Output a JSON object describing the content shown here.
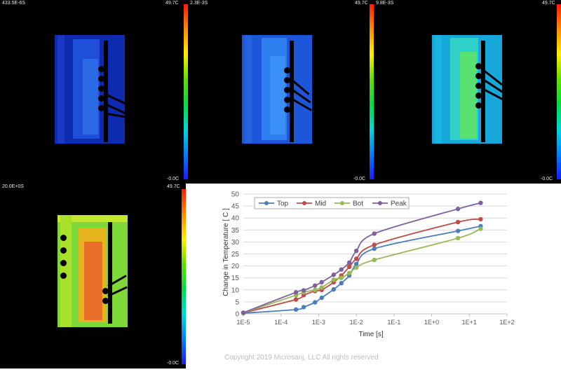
{
  "panels": [
    {
      "time": "433.5E-6S",
      "max": "49.7C",
      "min": "-0.0C"
    },
    {
      "time": "2.3E-3S",
      "max": "49.7C",
      "min": "-0.0C"
    },
    {
      "time": "9.8E-3S",
      "max": "49.7C",
      "min": "-0.0C"
    },
    {
      "time": "20.0E+0S",
      "max": "49.7C",
      "min": "-0.0C"
    }
  ],
  "copyright": "Copyright 2019 Microsanj, LLC All rights reserved",
  "chart_data": {
    "type": "line",
    "xlabel": "Time [s]",
    "ylabel": "Change in Temperature [ C ]",
    "x_scale": "log",
    "xlim": [
      1e-05,
      100
    ],
    "ylim": [
      0,
      50
    ],
    "x_tick_labels": [
      "1E-5",
      "1E-4",
      "1E-3",
      "1E-2",
      "1E-1",
      "1E+0",
      "1E+1",
      "1E+2"
    ],
    "y_ticks": [
      0,
      5,
      10,
      15,
      20,
      25,
      30,
      35,
      40,
      45,
      50
    ],
    "grid": true,
    "legend_position": "top-left",
    "x": [
      1e-05,
      0.00025,
      0.0004,
      0.0008,
      0.0012,
      0.0025,
      0.004,
      0.0065,
      0.01,
      0.03,
      5,
      20
    ],
    "series": [
      {
        "name": "Top",
        "color": "#4a7ebb",
        "values": [
          0.3,
          1.8,
          2.8,
          4.8,
          6.7,
          10.2,
          12.8,
          16.0,
          20.8,
          27.2,
          34.6,
          36.6
        ]
      },
      {
        "name": "Mid",
        "color": "#be4b48",
        "values": [
          0.4,
          6.0,
          7.8,
          9.5,
          10.0,
          13.2,
          16.0,
          19.6,
          23.0,
          28.8,
          38.3,
          39.5
        ]
      },
      {
        "name": "Bot",
        "color": "#98b954",
        "values": [
          0.4,
          7.8,
          9.0,
          10.0,
          11.0,
          14.2,
          15.0,
          17.0,
          19.3,
          22.5,
          31.6,
          35.5
        ]
      },
      {
        "name": "Peak",
        "color": "#7d60a0",
        "values": [
          0.5,
          9.0,
          9.8,
          11.8,
          13.2,
          16.3,
          18.5,
          21.4,
          26.3,
          33.5,
          43.8,
          46.3
        ]
      }
    ]
  }
}
